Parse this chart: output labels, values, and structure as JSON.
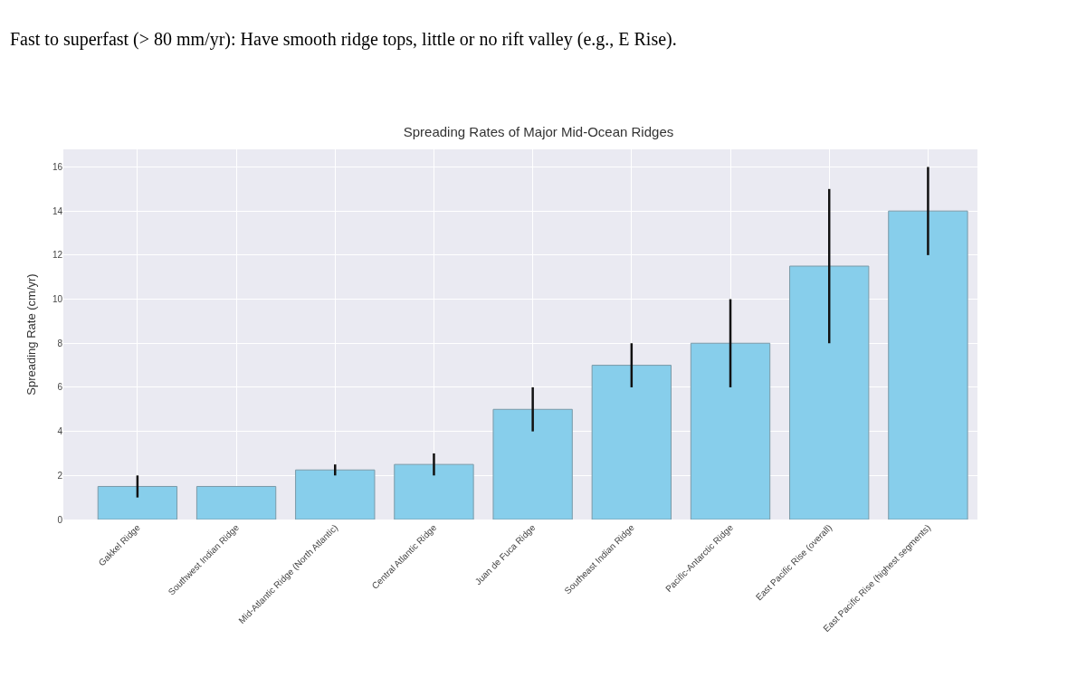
{
  "chart_data": {
    "type": "bar",
    "title": "Spreading Rates of Major Mid-Ocean Ridges",
    "ylabel": "Spreading Rate (cm/yr)",
    "annotations": [
      "Fast to superfast (> 80 mm/yr): Have smooth ridge tops, little or no rift valley (e.g., E Rise)."
    ],
    "categories": [
      "Gakkel Ridge",
      "Southwest Indian Ridge",
      "Mid-Atlantic Ridge (North Atlantic)",
      "Central Atlantic Ridge",
      "Juan de Fuca Ridge",
      "Southeast Indian Ridge",
      "Pacific-Antarctic Ridge",
      "East Pacific Rise (overall)",
      "East Pacific Rise (highest segments)"
    ],
    "values": [
      1.5,
      1.5,
      2.25,
      2.5,
      5,
      7,
      8,
      11.5,
      14
    ],
    "errors": [
      [
        1,
        2
      ],
      null,
      [
        2,
        2.5
      ],
      [
        2,
        3
      ],
      [
        4,
        6
      ],
      [
        6,
        8
      ],
      [
        6,
        10
      ],
      [
        8,
        15
      ],
      [
        12,
        16
      ]
    ],
    "color": "#87ceeb",
    "ylim": [
      0,
      16.8
    ],
    "yticks": [
      0,
      2,
      4,
      6,
      8,
      10,
      12,
      14,
      16
    ],
    "grid": true
  }
}
